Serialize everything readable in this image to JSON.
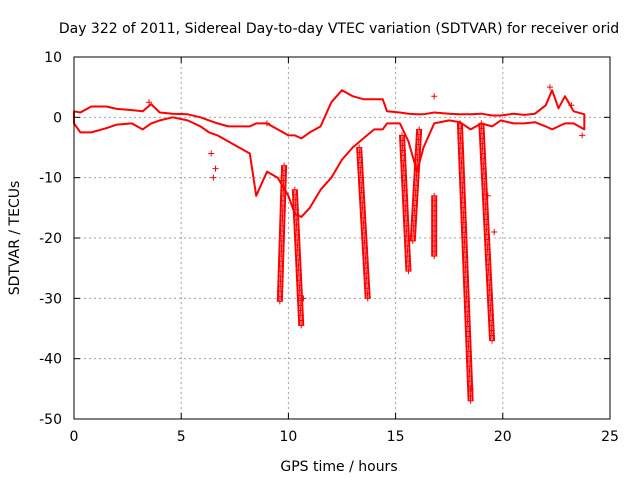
{
  "chart_data": {
    "type": "scatter",
    "title": "Day 322 of 2011, Sidereal Day-to-day VTEC variation (SDTVAR) for receiver orid",
    "xlabel": "GPS time / hours",
    "ylabel": "SDTVAR / TECUs",
    "xlim": [
      0,
      25
    ],
    "ylim": [
      -50,
      10
    ],
    "xticks": [
      0,
      5,
      10,
      15,
      20,
      25
    ],
    "yticks": [
      -50,
      -40,
      -30,
      -20,
      -10,
      0,
      10
    ],
    "xtick_labels": [
      "0",
      "5",
      "10",
      "15",
      "20",
      "25"
    ],
    "ytick_labels": [
      "-50",
      "-40",
      "-30",
      "-20",
      "-10",
      "0",
      "10"
    ],
    "grid": true,
    "marker": "+",
    "color": "#ff0000",
    "series": [
      {
        "name": "SDTVAR",
        "band": [
          {
            "x": 0.0,
            "lo": -1.0,
            "hi": 1.0
          },
          {
            "x": 0.3,
            "lo": -2.5,
            "hi": 0.8
          },
          {
            "x": 0.8,
            "lo": -2.5,
            "hi": 1.8
          },
          {
            "x": 1.5,
            "lo": -1.8,
            "hi": 1.8
          },
          {
            "x": 2.0,
            "lo": -1.2,
            "hi": 1.4
          },
          {
            "x": 2.7,
            "lo": -1.0,
            "hi": 1.2
          },
          {
            "x": 3.2,
            "lo": -2.0,
            "hi": 1.0
          },
          {
            "x": 3.6,
            "lo": -1.0,
            "hi": 2.2
          },
          {
            "x": 4.0,
            "lo": -0.5,
            "hi": 0.8
          },
          {
            "x": 4.6,
            "lo": 0.0,
            "hi": 0.6
          },
          {
            "x": 5.3,
            "lo": -0.5,
            "hi": 0.5
          },
          {
            "x": 5.9,
            "lo": -1.5,
            "hi": 0.0
          },
          {
            "x": 6.3,
            "lo": -2.5,
            "hi": -0.5
          },
          {
            "x": 6.7,
            "lo": -3.0,
            "hi": -1.0
          },
          {
            "x": 7.2,
            "lo": -4.0,
            "hi": -1.5
          },
          {
            "x": 7.7,
            "lo": -5.0,
            "hi": -1.5
          },
          {
            "x": 8.2,
            "lo": -6.0,
            "hi": -1.5
          },
          {
            "x": 8.5,
            "lo": -13.0,
            "hi": -1.0
          },
          {
            "x": 9.0,
            "lo": -9.0,
            "hi": -1.0
          },
          {
            "x": 9.5,
            "lo": -10.0,
            "hi": -2.0
          },
          {
            "x": 10.0,
            "lo": -13.0,
            "hi": -3.0
          },
          {
            "x": 10.3,
            "lo": -16.0,
            "hi": -3.0
          },
          {
            "x": 10.6,
            "lo": -16.5,
            "hi": -3.5
          },
          {
            "x": 11.0,
            "lo": -15.0,
            "hi": -2.5
          },
          {
            "x": 11.5,
            "lo": -12.0,
            "hi": -1.5
          },
          {
            "x": 12.0,
            "lo": -10.0,
            "hi": 2.5
          },
          {
            "x": 12.5,
            "lo": -7.0,
            "hi": 4.5
          },
          {
            "x": 13.0,
            "lo": -5.0,
            "hi": 3.5
          },
          {
            "x": 13.5,
            "lo": -3.5,
            "hi": 3.0
          },
          {
            "x": 14.0,
            "lo": -2.0,
            "hi": 3.0
          },
          {
            "x": 14.4,
            "lo": -2.0,
            "hi": 3.0
          },
          {
            "x": 14.6,
            "lo": -1.0,
            "hi": 1.0
          },
          {
            "x": 15.2,
            "lo": -1.0,
            "hi": 0.8
          },
          {
            "x": 15.6,
            "lo": -4.0,
            "hi": 0.6
          },
          {
            "x": 16.0,
            "lo": -9.0,
            "hi": 0.5
          },
          {
            "x": 16.3,
            "lo": -5.0,
            "hi": 0.5
          },
          {
            "x": 16.8,
            "lo": -1.0,
            "hi": 0.8
          },
          {
            "x": 17.5,
            "lo": -0.5,
            "hi": 0.6
          },
          {
            "x": 18.0,
            "lo": -0.8,
            "hi": 0.5
          },
          {
            "x": 18.5,
            "lo": -2.0,
            "hi": 0.5
          },
          {
            "x": 19.0,
            "lo": -1.0,
            "hi": 0.6
          },
          {
            "x": 19.5,
            "lo": -1.5,
            "hi": 0.3
          },
          {
            "x": 19.9,
            "lo": -0.5,
            "hi": 0.3
          },
          {
            "x": 20.5,
            "lo": -1.0,
            "hi": 0.6
          },
          {
            "x": 21.0,
            "lo": -1.0,
            "hi": 0.4
          },
          {
            "x": 21.5,
            "lo": -0.8,
            "hi": 0.6
          },
          {
            "x": 22.0,
            "lo": -1.5,
            "hi": 2.0
          },
          {
            "x": 22.3,
            "lo": -2.0,
            "hi": 4.5
          },
          {
            "x": 22.6,
            "lo": -1.5,
            "hi": 1.5
          },
          {
            "x": 22.9,
            "lo": -1.0,
            "hi": 3.5
          },
          {
            "x": 23.3,
            "lo": -1.0,
            "hi": 1.0
          },
          {
            "x": 23.8,
            "lo": -2.0,
            "hi": 0.5
          }
        ],
        "spikes": [
          {
            "x_top": 9.8,
            "x_bottom": 9.6,
            "top": -8.0,
            "bottom": -30.5
          },
          {
            "x_top": 10.3,
            "x_bottom": 10.6,
            "top": -12.0,
            "bottom": -34.5
          },
          {
            "x_top": 13.3,
            "x_bottom": 13.7,
            "top": -5.0,
            "bottom": -30.0
          },
          {
            "x_top": 15.3,
            "x_bottom": 15.6,
            "top": -3.0,
            "bottom": -25.5
          },
          {
            "x_top": 16.1,
            "x_bottom": 15.8,
            "top": -2.0,
            "bottom": -20.5
          },
          {
            "x_top": 16.8,
            "x_bottom": 16.8,
            "top": -13.0,
            "bottom": -23.0
          },
          {
            "x_top": 18.0,
            "x_bottom": 18.5,
            "top": -1.0,
            "bottom": -47.0
          },
          {
            "x_top": 19.0,
            "x_bottom": 19.5,
            "top": -1.0,
            "bottom": -37.0
          }
        ],
        "points": [
          {
            "x": 3.5,
            "y": 2.5
          },
          {
            "x": 6.4,
            "y": -6.0
          },
          {
            "x": 6.5,
            "y": -10.0
          },
          {
            "x": 6.6,
            "y": -8.5
          },
          {
            "x": 9.0,
            "y": -1.0
          },
          {
            "x": 10.7,
            "y": -30.0
          },
          {
            "x": 16.8,
            "y": 3.5
          },
          {
            "x": 18.5,
            "y": -45.0
          },
          {
            "x": 19.3,
            "y": -13.0
          },
          {
            "x": 19.6,
            "y": -19.0
          },
          {
            "x": 22.2,
            "y": 5.0
          },
          {
            "x": 23.2,
            "y": 2.0
          },
          {
            "x": 23.7,
            "y": -3.0
          }
        ]
      }
    ]
  }
}
